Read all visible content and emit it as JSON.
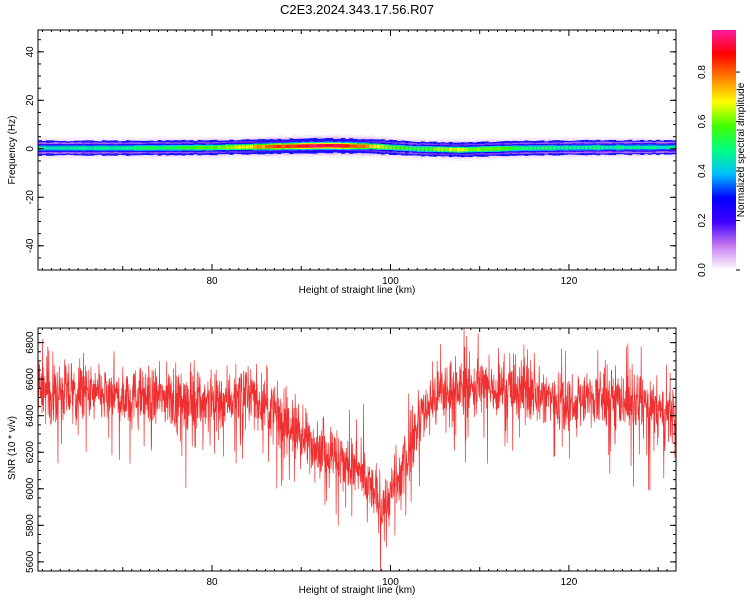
{
  "title": "C2E3.2024.343.17.56.R07",
  "chart_data": [
    {
      "type": "heatmap",
      "xlabel": "Height of straight line (km)",
      "ylabel": "Frequency (Hz)",
      "xlim": [
        60.5,
        132
      ],
      "ylim": [
        -50,
        49
      ],
      "xticks": [
        80,
        100,
        120
      ],
      "yticks": [
        -40,
        -20,
        0,
        20,
        40
      ],
      "colorbar": {
        "label": "Normalized spectral amplitude",
        "range": [
          0,
          0.97
        ],
        "ticks": [
          0.0,
          0.2,
          0.4,
          0.6,
          0.8
        ],
        "colors": [
          "#ffffff",
          "#c87cf0",
          "#4000ff",
          "#0000ff",
          "#00c0ff",
          "#00ff80",
          "#40ff00",
          "#ffff00",
          "#ff8000",
          "#ff0000",
          "#ff1aa0"
        ]
      },
      "band_center_hz": [
        [
          60.5,
          0.3
        ],
        [
          70,
          0.3
        ],
        [
          80,
          0.5
        ],
        [
          88,
          1.0
        ],
        [
          93,
          1.3
        ],
        [
          98,
          1.0
        ],
        [
          103,
          0.0
        ],
        [
          108,
          -0.4
        ],
        [
          114,
          0.2
        ],
        [
          122,
          0.5
        ],
        [
          132,
          0.6
        ]
      ],
      "peak_amplitude": [
        [
          60.5,
          0.45
        ],
        [
          70,
          0.48
        ],
        [
          78,
          0.55
        ],
        [
          84,
          0.68
        ],
        [
          88,
          0.84
        ],
        [
          92,
          0.93
        ],
        [
          96,
          0.84
        ],
        [
          99,
          0.62
        ],
        [
          103,
          0.55
        ],
        [
          107,
          0.66
        ],
        [
          111,
          0.6
        ],
        [
          116,
          0.5
        ],
        [
          124,
          0.48
        ],
        [
          132,
          0.45
        ]
      ]
    },
    {
      "type": "line",
      "xlabel": "Height of straight line (km)",
      "ylabel": "SNR (10 * v/v)",
      "xlim": [
        60.5,
        132
      ],
      "ylim": [
        5550,
        6880
      ],
      "xticks": [
        80,
        100,
        120
      ],
      "yticks": [
        5600,
        5800,
        6000,
        6200,
        6400,
        6600,
        6800
      ],
      "color": "#f03030",
      "series": [
        {
          "x": [
            60.5,
            65,
            70,
            75,
            80,
            84,
            86,
            88,
            90,
            92,
            94,
            96,
            98,
            99,
            100,
            101,
            102,
            103,
            104,
            106,
            110,
            115,
            120,
            125,
            128,
            130,
            132
          ],
          "y": [
            6530,
            6520,
            6500,
            6500,
            6480,
            6520,
            6460,
            6360,
            6290,
            6230,
            6170,
            6110,
            5990,
            5910,
            5960,
            6050,
            6200,
            6340,
            6450,
            6540,
            6560,
            6530,
            6480,
            6500,
            6460,
            6420,
            6380
          ]
        }
      ]
    }
  ]
}
